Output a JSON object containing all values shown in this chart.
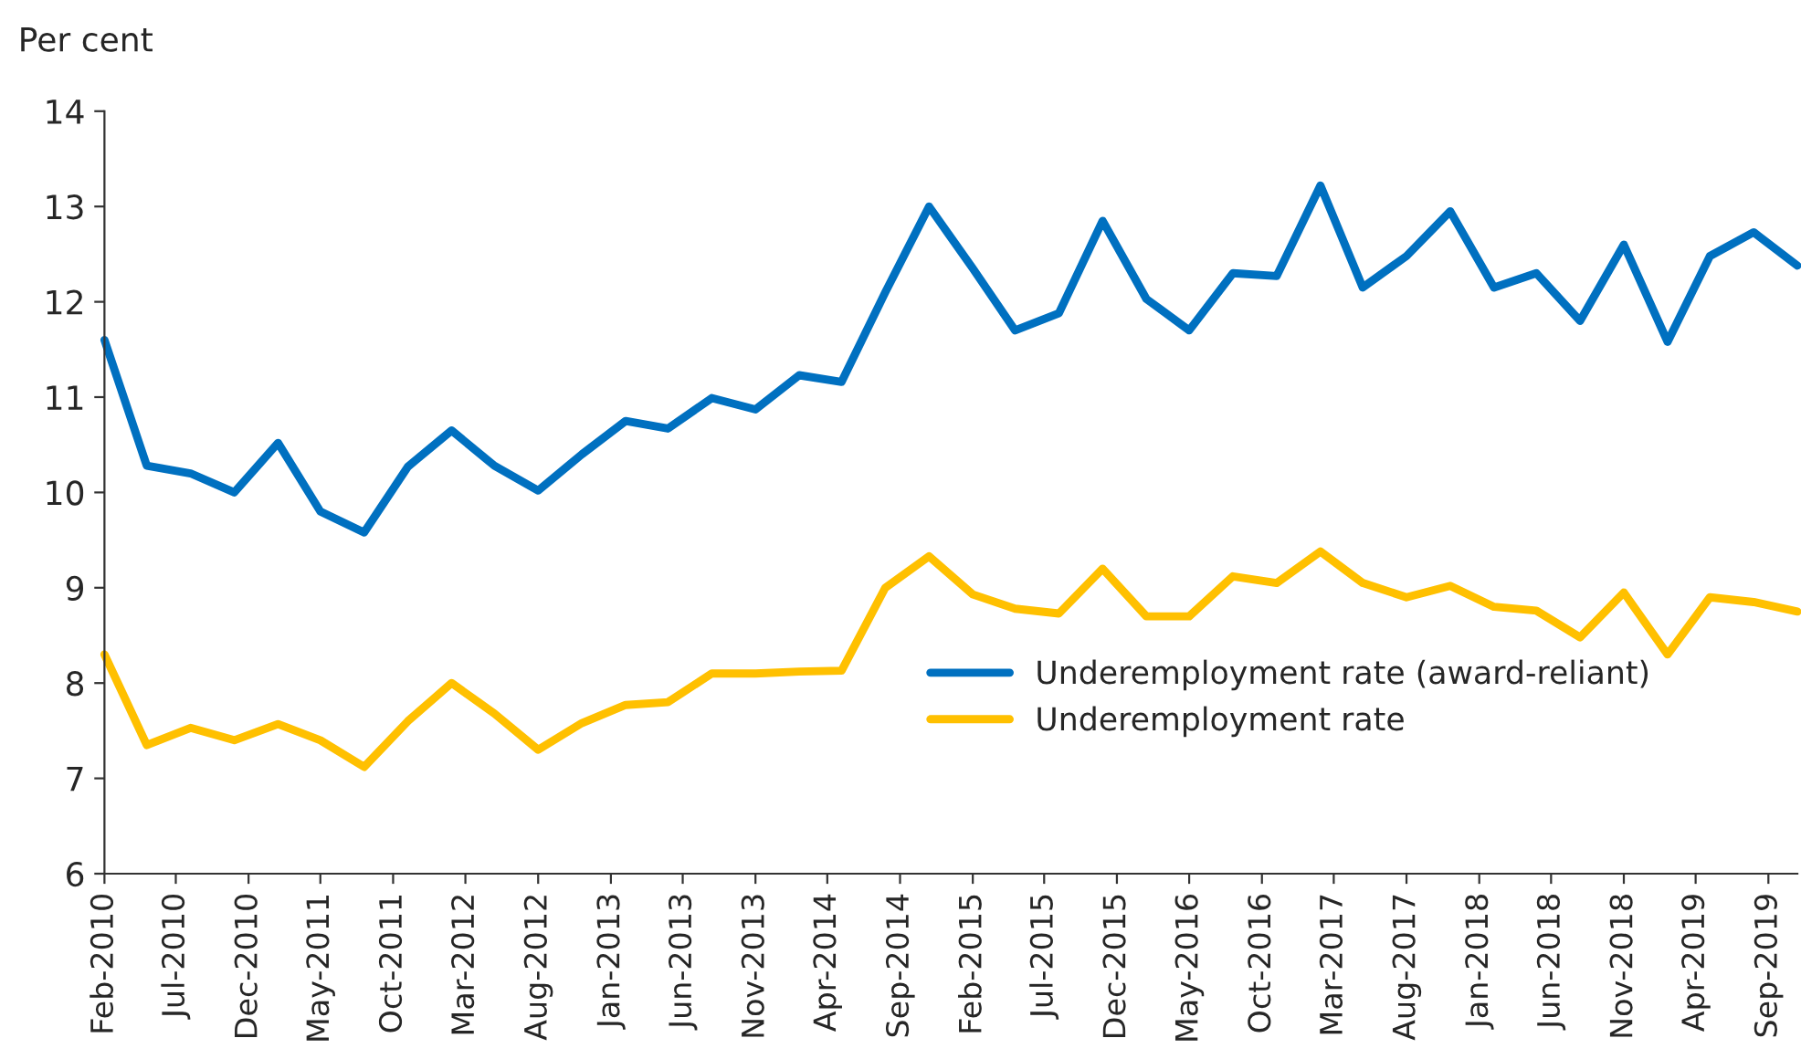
{
  "chart_data": {
    "type": "line",
    "ylabel": "Per cent",
    "x": [
      "2010-02",
      "2010-05",
      "2010-08",
      "2010-11",
      "2011-02",
      "2011-05",
      "2011-08",
      "2011-11",
      "2012-02",
      "2012-05",
      "2012-08",
      "2012-11",
      "2013-02",
      "2013-05",
      "2013-08",
      "2013-11",
      "2014-02",
      "2014-05",
      "2014-08",
      "2014-11",
      "2015-02",
      "2015-05",
      "2015-08",
      "2015-11",
      "2016-02",
      "2016-05",
      "2016-08",
      "2016-11",
      "2017-02",
      "2017-05",
      "2017-08",
      "2017-11",
      "2018-02",
      "2018-05",
      "2018-08",
      "2018-11",
      "2019-02",
      "2019-05",
      "2019-08",
      "2019-11"
    ],
    "series": [
      {
        "name": "Underemployment rate (award-reliant)",
        "color": "#0070c0",
        "values": [
          11.6,
          10.28,
          10.2,
          10.0,
          10.52,
          9.8,
          9.58,
          10.27,
          10.65,
          10.28,
          10.02,
          10.4,
          10.75,
          10.67,
          10.99,
          10.87,
          11.23,
          11.16,
          12.1,
          13.0,
          12.35,
          11.7,
          11.88,
          12.85,
          12.03,
          11.7,
          12.3,
          12.27,
          13.22,
          12.15,
          12.48,
          12.95,
          12.15,
          12.3,
          11.8,
          12.6,
          11.58,
          12.48,
          12.73,
          12.38
        ]
      },
      {
        "name": "Underemployment rate",
        "color": "#ffc000",
        "values": [
          8.3,
          7.35,
          7.53,
          7.4,
          7.57,
          7.4,
          7.12,
          7.6,
          8.0,
          7.68,
          7.3,
          7.58,
          7.77,
          7.8,
          8.1,
          8.1,
          8.12,
          8.13,
          9.0,
          9.33,
          8.93,
          8.78,
          8.73,
          9.2,
          8.7,
          8.7,
          9.12,
          9.05,
          9.38,
          9.05,
          8.9,
          9.02,
          8.8,
          8.76,
          8.48,
          8.95,
          8.3,
          8.9,
          8.85,
          8.75
        ]
      }
    ],
    "xlim": [
      "2010-02",
      "2019-11"
    ],
    "xticks": [
      {
        "value": "2010-02",
        "label": "Feb-2010"
      },
      {
        "value": "2010-07",
        "label": "Jul-2010"
      },
      {
        "value": "2010-12",
        "label": "Dec-2010"
      },
      {
        "value": "2011-05",
        "label": "May-2011"
      },
      {
        "value": "2011-10",
        "label": "Oct-2011"
      },
      {
        "value": "2012-03",
        "label": "Mar-2012"
      },
      {
        "value": "2012-08",
        "label": "Aug-2012"
      },
      {
        "value": "2013-01",
        "label": "Jan-2013"
      },
      {
        "value": "2013-06",
        "label": "Jun-2013"
      },
      {
        "value": "2013-11",
        "label": "Nov-2013"
      },
      {
        "value": "2014-04",
        "label": "Apr-2014"
      },
      {
        "value": "2014-09",
        "label": "Sep-2014"
      },
      {
        "value": "2015-02",
        "label": "Feb-2015"
      },
      {
        "value": "2015-07",
        "label": "Jul-2015"
      },
      {
        "value": "2015-12",
        "label": "Dec-2015"
      },
      {
        "value": "2016-05",
        "label": "May-2016"
      },
      {
        "value": "2016-10",
        "label": "Oct-2016"
      },
      {
        "value": "2017-03",
        "label": "Mar-2017"
      },
      {
        "value": "2017-08",
        "label": "Aug-2017"
      },
      {
        "value": "2018-01",
        "label": "Jan-2018"
      },
      {
        "value": "2018-06",
        "label": "Jun-2018"
      },
      {
        "value": "2018-11",
        "label": "Nov-2018"
      },
      {
        "value": "2019-04",
        "label": "Apr-2019"
      },
      {
        "value": "2019-09",
        "label": "Sep-2019"
      }
    ],
    "ylim": [
      6,
      14
    ],
    "yticks": [
      6,
      7,
      8,
      9,
      10,
      11,
      12,
      13,
      14
    ],
    "legend": "center right",
    "grid": false,
    "line_style": "solid"
  }
}
